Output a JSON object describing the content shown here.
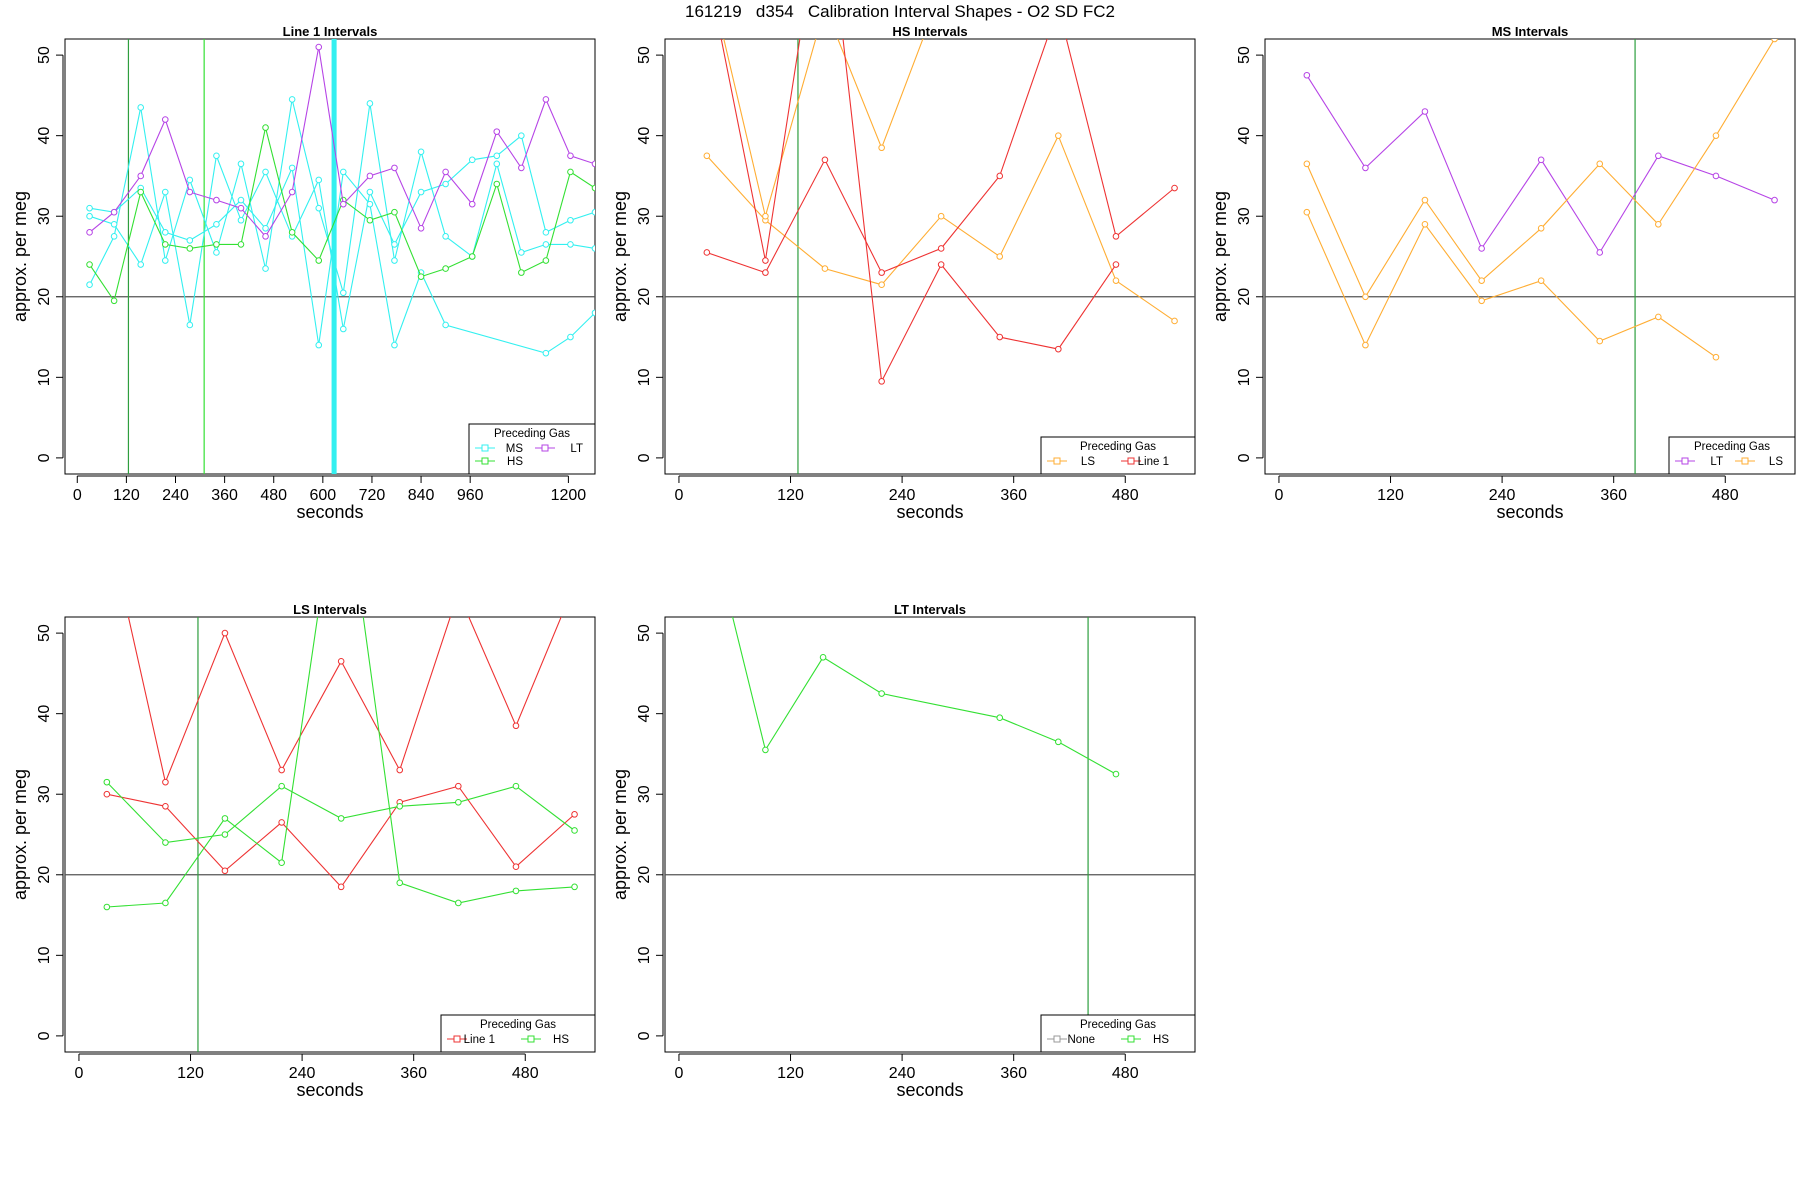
{
  "main_title": "161219   d354   Calibration Interval Shapes - O2 SD FC2",
  "colors": {
    "MS": "#33f0f0",
    "HS": "#33e033",
    "LT": "#b644e6",
    "LS": "#ffad33",
    "Line 1": "#ee3333",
    "None": "#999999",
    "vline": "#2e9e3e",
    "hline": "#555555"
  },
  "chart_data": [
    {
      "type": "line",
      "title": "Line 1 Intervals",
      "xlabel": "seconds",
      "ylabel": "approx. per meg",
      "xlim": [
        -30,
        1265
      ],
      "ylim": [
        -2,
        52
      ],
      "xticks": [
        0,
        120,
        240,
        360,
        480,
        600,
        720,
        840,
        960,
        1200
      ],
      "yticks": [
        0,
        10,
        20,
        30,
        40,
        50
      ],
      "hline": 20,
      "vlines": [
        {
          "x": 125,
          "color": "vline"
        },
        {
          "x": 310,
          "color": "HS"
        },
        {
          "x": 625,
          "color": "MS",
          "width": 3
        },
        {
          "x": 630,
          "color": "MS",
          "width": 3
        }
      ],
      "legend": {
        "title": "Preceding Gas",
        "position": "bottom-right",
        "columns": 2,
        "entries": [
          "MS",
          "LT",
          "HS"
        ]
      },
      "series": [
        {
          "name": "MS",
          "x": [
            30,
            90,
            155,
            215,
            275,
            340,
            400,
            460,
            525,
            590,
            650,
            715,
            775,
            840,
            900,
            965,
            1025,
            1085,
            1145,
            1205,
            1265
          ],
          "y": [
            21.5,
            27.5,
            43.5,
            24.5,
            34.5,
            25.5,
            36.5,
            23.5,
            44.5,
            31.0,
            20.5,
            44.0,
            24.5,
            38.0,
            27.5,
            25.0,
            36.5,
            25.5,
            26.5,
            26.5,
            26.0
          ]
        },
        {
          "name": "MS",
          "x": [
            30,
            90,
            155,
            215,
            275,
            340,
            400,
            460,
            525,
            590,
            650,
            715,
            775,
            840,
            900,
            965,
            1025,
            1085,
            1145,
            1205,
            1265
          ],
          "y": [
            30.0,
            29.0,
            24.0,
            33.0,
            16.5,
            37.5,
            29.5,
            35.5,
            27.5,
            34.5,
            16.0,
            33.0,
            26.5,
            33.0,
            34.0,
            37.0,
            37.5,
            40.0,
            28.0,
            29.5,
            30.5
          ]
        },
        {
          "name": "MS",
          "x": [
            30,
            90,
            155,
            215,
            275,
            340,
            400,
            460,
            525,
            590,
            650,
            715,
            775,
            840,
            900,
            1145,
            1205,
            1265
          ],
          "y": [
            31.0,
            30.5,
            33.5,
            28.0,
            27.0,
            29.0,
            32.0,
            28.5,
            36.0,
            14.0,
            35.5,
            31.5,
            14.0,
            23.0,
            16.5,
            13.0,
            15.0,
            18.0
          ]
        },
        {
          "name": "HS",
          "x": [
            30,
            90,
            155,
            215,
            275,
            340,
            400,
            460,
            525,
            590,
            650,
            715,
            775,
            840,
            900,
            965,
            1025,
            1085,
            1145,
            1205,
            1265
          ],
          "y": [
            24.0,
            19.5,
            33.0,
            26.5,
            26.0,
            26.5,
            26.5,
            41.0,
            28.0,
            24.5,
            32.0,
            29.5,
            30.5,
            22.5,
            23.5,
            25.0,
            34.0,
            23.0,
            24.5,
            35.5,
            33.5
          ]
        },
        {
          "name": "LT",
          "x": [
            30,
            90,
            155,
            215,
            275,
            340,
            400,
            460,
            525,
            590,
            650,
            715,
            775,
            840,
            900,
            965,
            1025,
            1085,
            1145,
            1205,
            1265
          ],
          "y": [
            28.0,
            30.5,
            35.0,
            42.0,
            33.0,
            32.0,
            31.0,
            27.5,
            33.0,
            51.0,
            31.5,
            35.0,
            36.0,
            28.5,
            35.5,
            31.5,
            40.5,
            36.0,
            44.5,
            37.5,
            36.5
          ]
        }
      ]
    },
    {
      "type": "line",
      "title": "HS Intervals",
      "xlabel": "seconds",
      "ylabel": "approx. per meg",
      "xlim": [
        -15,
        555
      ],
      "ylim": [
        -2,
        52
      ],
      "xticks": [
        0,
        120,
        240,
        360,
        480
      ],
      "yticks": [
        0,
        10,
        20,
        30,
        40,
        50
      ],
      "hline": 20,
      "vlines": [
        {
          "x": 128,
          "color": "vline"
        }
      ],
      "legend": {
        "title": "Preceding Gas",
        "position": "bottom-right",
        "columns": 2,
        "entries": [
          "LS",
          "Line 1"
        ]
      },
      "series": [
        {
          "name": "LS",
          "x": [
            30,
            93,
            157,
            218,
            282,
            345,
            408,
            470,
            533
          ],
          "y": [
            37.5,
            29.5,
            23.5,
            21.5,
            30.0,
            25.0,
            40.0,
            22.0,
            17.0
          ]
        },
        {
          "name": "LS",
          "x": [
            30,
            93,
            157,
            218,
            282
          ],
          "y": [
            61.0,
            30.0,
            56.0,
            38.5,
            58.0
          ]
        },
        {
          "name": "Line 1",
          "x": [
            30,
            93,
            157,
            218,
            282,
            345,
            408,
            470,
            533
          ],
          "y": [
            25.5,
            23.0,
            37.0,
            23.0,
            26.0,
            35.0,
            56.0,
            27.5,
            33.5
          ]
        },
        {
          "name": "Line 1",
          "x": [
            30,
            93,
            157,
            218,
            282,
            345,
            408,
            470
          ],
          "y": [
            61.0,
            24.5,
            72.0,
            9.5,
            24.0,
            15.0,
            13.5,
            24.0
          ]
        }
      ]
    },
    {
      "type": "line",
      "title": "MS Intervals",
      "xlabel": "seconds",
      "ylabel": "approx. per meg",
      "xlim": [
        -15,
        555
      ],
      "ylim": [
        -2,
        52
      ],
      "xticks": [
        0,
        120,
        240,
        360,
        480
      ],
      "yticks": [
        0,
        10,
        20,
        30,
        40,
        50
      ],
      "hline": 20,
      "vlines": [
        {
          "x": 383,
          "color": "vline"
        }
      ],
      "legend": {
        "title": "Preceding Gas",
        "position": "bottom-right",
        "columns": 2,
        "entries": [
          "LT",
          "LS"
        ]
      },
      "series": [
        {
          "name": "LT",
          "x": [
            30,
            93,
            157,
            218,
            282,
            345,
            408,
            470,
            533
          ],
          "y": [
            47.5,
            36.0,
            43.0,
            26.0,
            37.0,
            25.5,
            37.5,
            35.0,
            32.0
          ]
        },
        {
          "name": "LS",
          "x": [
            30,
            93,
            157,
            218,
            282,
            345,
            408,
            470,
            533
          ],
          "y": [
            36.5,
            20.0,
            32.0,
            22.0,
            28.5,
            36.5,
            29.0,
            40.0,
            52.0
          ]
        },
        {
          "name": "LS",
          "x": [
            30,
            93,
            157,
            218,
            282,
            345,
            408,
            470
          ],
          "y": [
            30.5,
            14.0,
            29.0,
            19.5,
            22.0,
            14.5,
            17.5,
            12.5
          ]
        }
      ]
    },
    {
      "type": "line",
      "title": "LS Intervals",
      "xlabel": "seconds",
      "ylabel": "approx. per meg",
      "xlim": [
        -15,
        555
      ],
      "ylim": [
        -2,
        52
      ],
      "xticks": [
        0,
        120,
        240,
        360,
        480
      ],
      "yticks": [
        0,
        10,
        20,
        30,
        40,
        50
      ],
      "hline": 20,
      "vlines": [
        {
          "x": 128,
          "color": "vline"
        }
      ],
      "legend": {
        "title": "Preceding Gas",
        "position": "bottom-right",
        "columns": 2,
        "entries": [
          "Line 1",
          "HS"
        ]
      },
      "series": [
        {
          "name": "Line 1",
          "x": [
            30,
            93,
            157,
            218,
            282,
            345,
            408,
            470,
            533
          ],
          "y": [
            64.0,
            31.5,
            50.0,
            33.0,
            46.5,
            33.0,
            55.0,
            38.5,
            56.0
          ]
        },
        {
          "name": "Line 1",
          "x": [
            30,
            93,
            157,
            218,
            282,
            345,
            408,
            470,
            533
          ],
          "y": [
            30.0,
            28.5,
            20.5,
            26.5,
            18.5,
            29.0,
            31.0,
            21.0,
            27.5
          ]
        },
        {
          "name": "HS",
          "x": [
            30,
            93,
            157,
            218,
            282,
            345,
            408,
            470,
            533
          ],
          "y": [
            31.5,
            24.0,
            25.0,
            31.0,
            27.0,
            28.5,
            29.0,
            31.0,
            25.5
          ]
        },
        {
          "name": "HS",
          "x": [
            30,
            93,
            157,
            218,
            282,
            345,
            408,
            470,
            533
          ],
          "y": [
            16.0,
            16.5,
            27.0,
            21.5,
            72.0,
            19.0,
            16.5,
            18.0,
            18.5
          ]
        }
      ]
    },
    {
      "type": "line",
      "title": "LT Intervals",
      "xlabel": "seconds",
      "ylabel": "approx. per meg",
      "xlim": [
        -15,
        555
      ],
      "ylim": [
        -2,
        52
      ],
      "xticks": [
        0,
        120,
        240,
        360,
        480
      ],
      "yticks": [
        0,
        10,
        20,
        30,
        40,
        50
      ],
      "hline": 20,
      "vlines": [
        {
          "x": 440,
          "color": "vline"
        }
      ],
      "legend": {
        "title": "Preceding Gas",
        "position": "bottom-right",
        "columns": 2,
        "entries": [
          "None",
          "HS"
        ]
      },
      "series": [
        {
          "name": "HS",
          "x": [
            30,
            93,
            155,
            218,
            345,
            408,
            470
          ],
          "y": [
            65.0,
            35.5,
            47.0,
            42.5,
            39.5,
            36.5,
            32.5
          ]
        }
      ]
    }
  ]
}
